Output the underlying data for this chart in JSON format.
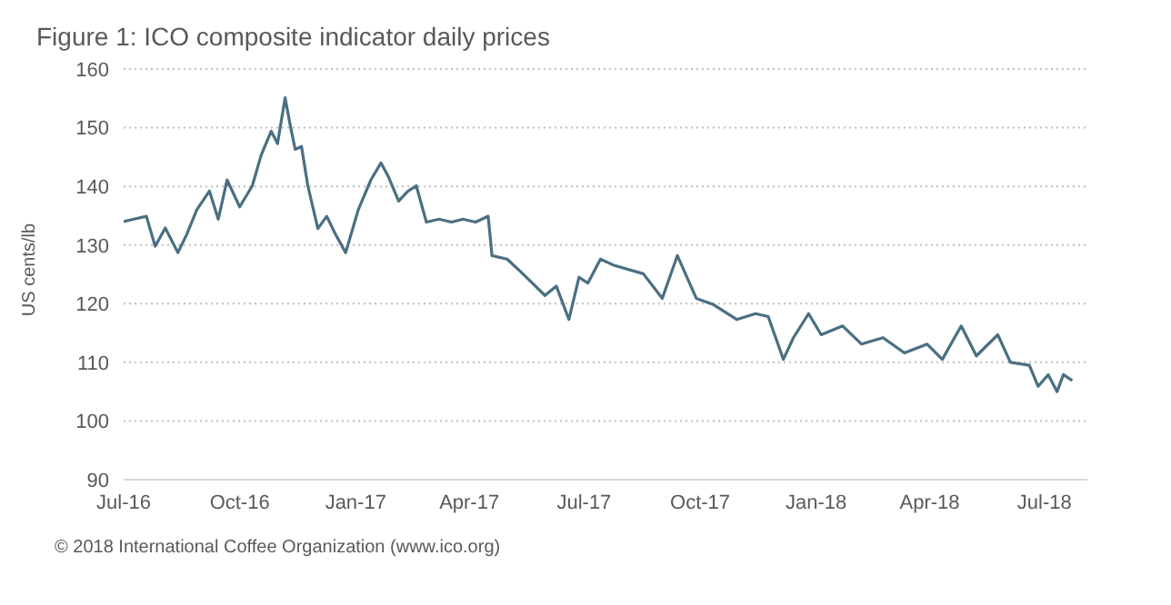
{
  "chart_data": {
    "type": "line",
    "title": "Figure 1: ICO composite indicator daily prices",
    "ylabel": "US cents/lb",
    "annotations": [
      "© 2018 International Coffee Organization (www.ico.org)"
    ],
    "x": [
      "2016-07-01",
      "2016-07-09",
      "2016-07-19",
      "2016-07-26",
      "2016-08-03",
      "2016-08-13",
      "2016-08-20",
      "2016-08-28",
      "2016-09-07",
      "2016-09-14",
      "2016-09-21",
      "2016-10-01",
      "2016-10-11",
      "2016-10-18",
      "2016-10-26",
      "2016-10-31",
      "2016-11-06",
      "2016-11-10",
      "2016-11-14",
      "2016-11-19",
      "2016-11-24",
      "2016-12-02",
      "2016-12-09",
      "2016-12-16",
      "2016-12-24",
      "2017-01-03",
      "2017-01-13",
      "2017-01-21",
      "2017-01-27",
      "2017-02-04",
      "2017-02-11",
      "2017-02-18",
      "2017-02-26",
      "2017-03-08",
      "2017-03-18",
      "2017-03-27",
      "2017-04-06",
      "2017-04-16",
      "2017-04-19",
      "2017-05-01",
      "2017-05-11",
      "2017-05-21",
      "2017-05-31",
      "2017-06-09",
      "2017-06-19",
      "2017-06-27",
      "2017-07-04",
      "2017-07-14",
      "2017-07-24",
      "2017-08-17",
      "2017-09-01",
      "2017-09-13",
      "2017-09-28",
      "2017-10-11",
      "2017-10-30",
      "2017-11-14",
      "2017-11-24",
      "2017-12-06",
      "2017-12-14",
      "2017-12-26",
      "2018-01-05",
      "2018-01-22",
      "2018-02-06",
      "2018-02-23",
      "2018-03-12",
      "2018-03-30",
      "2018-04-11",
      "2018-04-26",
      "2018-05-08",
      "2018-05-25",
      "2018-06-04",
      "2018-06-19",
      "2018-06-26",
      "2018-07-04",
      "2018-07-11",
      "2018-07-16",
      "2018-07-23"
    ],
    "series": [
      {
        "color": "#4a6f82",
        "values": [
          134,
          134.4,
          134.9,
          129.8,
          132.9,
          128.7,
          131.8,
          136,
          139.2,
          134.4,
          141.1,
          136.5,
          140.1,
          145.3,
          149.4,
          147.3,
          155.1,
          150.5,
          146.3,
          146.8,
          140.1,
          132.8,
          134.9,
          131.8,
          128.7,
          136,
          141.1,
          144,
          141.6,
          137.5,
          139.1,
          140.1,
          133.9,
          134.4,
          133.9,
          134.4,
          133.9,
          134.9,
          128.2,
          127.6,
          125.6,
          123.5,
          121.4,
          123,
          117.3,
          124.5,
          123.5,
          127.6,
          126.6,
          125.1,
          120.9,
          128.2,
          120.9,
          119.9,
          117.3,
          118.3,
          117.8,
          110.5,
          114.2,
          118.3,
          114.7,
          116.2,
          113.1,
          114.2,
          111.6,
          113.1,
          110.5,
          116.2,
          111.1,
          114.7,
          110,
          109.5,
          105.9,
          107.9,
          105,
          107.9,
          106.9
        ]
      }
    ],
    "xlim": [
      "2016-07-01",
      "2018-08-04"
    ],
    "xticks": [
      {
        "value": "2016-07-01",
        "label": "Jul-16"
      },
      {
        "value": "2016-10-01",
        "label": "Oct-16"
      },
      {
        "value": "2017-01-01",
        "label": "Jan-17"
      },
      {
        "value": "2017-04-01",
        "label": "Apr-17"
      },
      {
        "value": "2017-07-01",
        "label": "Jul-17"
      },
      {
        "value": "2017-10-01",
        "label": "Oct-17"
      },
      {
        "value": "2018-01-01",
        "label": "Jan-18"
      },
      {
        "value": "2018-04-01",
        "label": "Apr-18"
      },
      {
        "value": "2018-07-01",
        "label": "Jul-18"
      }
    ],
    "ylim": [
      90,
      160
    ],
    "yticks": [
      90,
      100,
      110,
      120,
      130,
      140,
      150,
      160
    ],
    "grid": "y",
    "marker": "none",
    "line_style": "solid"
  }
}
